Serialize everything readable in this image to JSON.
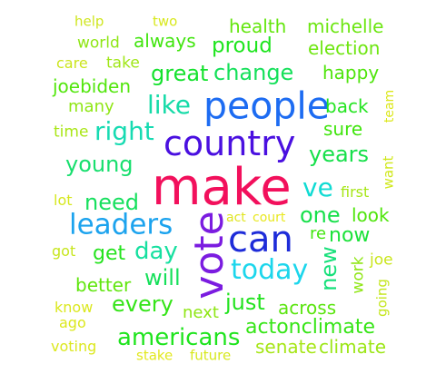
{
  "word_cloud": {
    "words": [
      {
        "text": "help",
        "color": "#cfe61f",
        "vertical": false
      },
      {
        "text": "two",
        "color": "#d8e81d",
        "vertical": false
      },
      {
        "text": "health",
        "color": "#64e60e",
        "vertical": false
      },
      {
        "text": "michelle",
        "color": "#6ce610",
        "vertical": false
      },
      {
        "text": "world",
        "color": "#8ee614",
        "vertical": false
      },
      {
        "text": "always",
        "color": "#41e50e",
        "vertical": false
      },
      {
        "text": "proud",
        "color": "#1fe51f",
        "vertical": false
      },
      {
        "text": "election",
        "color": "#6ee610",
        "vertical": false
      },
      {
        "text": "care",
        "color": "#cbe51d",
        "vertical": false
      },
      {
        "text": "take",
        "color": "#9fe616",
        "vertical": false
      },
      {
        "text": "great",
        "color": "#15e22e",
        "vertical": false
      },
      {
        "text": "change",
        "color": "#15e05a",
        "vertical": false
      },
      {
        "text": "happy",
        "color": "#4fe50c",
        "vertical": false
      },
      {
        "text": "joebiden",
        "color": "#52e60c",
        "vertical": false
      },
      {
        "text": "people",
        "color": "#1d6cf2",
        "vertical": false
      },
      {
        "text": "many",
        "color": "#8fe614",
        "vertical": false
      },
      {
        "text": "like",
        "color": "#16dba8",
        "vertical": false
      },
      {
        "text": "back",
        "color": "#23e41f",
        "vertical": false
      },
      {
        "text": "team",
        "color": "#dce81d",
        "vertical": true
      },
      {
        "text": "time",
        "color": "#a9e616",
        "vertical": false
      },
      {
        "text": "right",
        "color": "#17dbb2",
        "vertical": false
      },
      {
        "text": "sure",
        "color": "#40e50d",
        "vertical": false
      },
      {
        "text": "country",
        "color": "#4a10e0",
        "vertical": false
      },
      {
        "text": "years",
        "color": "#16e04a",
        "vertical": false
      },
      {
        "text": "young",
        "color": "#18df6e",
        "vertical": false
      },
      {
        "text": "want",
        "color": "#d0e81d",
        "vertical": true
      },
      {
        "text": "make",
        "color": "#f2105c",
        "vertical": false
      },
      {
        "text": "first",
        "color": "#a6e616",
        "vertical": false
      },
      {
        "text": "lot",
        "color": "#d6e81d",
        "vertical": false
      },
      {
        "text": "need",
        "color": "#17e05e",
        "vertical": false
      },
      {
        "text": "ve",
        "color": "#10dbd3",
        "vertical": false
      },
      {
        "text": "one",
        "color": "#16e04a",
        "vertical": false
      },
      {
        "text": "leaders",
        "color": "#1ca3ee",
        "vertical": false
      },
      {
        "text": "act",
        "color": "#e0e51f",
        "vertical": false
      },
      {
        "text": "court",
        "color": "#e8e81f",
        "vertical": false
      },
      {
        "text": "look",
        "color": "#4fe50c",
        "vertical": false
      },
      {
        "text": "vote",
        "color": "#7b1ce0",
        "vertical": true
      },
      {
        "text": "can",
        "color": "#1e2cd9",
        "vertical": false
      },
      {
        "text": "re",
        "color": "#41e50e",
        "vertical": false
      },
      {
        "text": "now",
        "color": "#1ce23a",
        "vertical": false
      },
      {
        "text": "got",
        "color": "#c7e61d",
        "vertical": false
      },
      {
        "text": "get",
        "color": "#25e31e",
        "vertical": false
      },
      {
        "text": "day",
        "color": "#17e0a0",
        "vertical": false
      },
      {
        "text": "new",
        "color": "#16e07a",
        "vertical": true
      },
      {
        "text": "today",
        "color": "#1cd6ec",
        "vertical": false
      },
      {
        "text": "work",
        "color": "#8fe614",
        "vertical": true
      },
      {
        "text": "joe",
        "color": "#cae61d",
        "vertical": false
      },
      {
        "text": "will",
        "color": "#16e05a",
        "vertical": false
      },
      {
        "text": "better",
        "color": "#60e60e",
        "vertical": false
      },
      {
        "text": "going",
        "color": "#c4e61d",
        "vertical": true
      },
      {
        "text": "know",
        "color": "#dbe81f",
        "vertical": false
      },
      {
        "text": "every",
        "color": "#35e418",
        "vertical": false
      },
      {
        "text": "just",
        "color": "#22e31f",
        "vertical": false
      },
      {
        "text": "across",
        "color": "#5ae50e",
        "vertical": false
      },
      {
        "text": "ago",
        "color": "#dce81d",
        "vertical": false
      },
      {
        "text": "next",
        "color": "#8ee614",
        "vertical": false
      },
      {
        "text": "actonclimate",
        "color": "#36e516",
        "vertical": false
      },
      {
        "text": "americans",
        "color": "#1fe41e",
        "vertical": false
      },
      {
        "text": "voting",
        "color": "#dce81f",
        "vertical": false
      },
      {
        "text": "senate",
        "color": "#a6e616",
        "vertical": false
      },
      {
        "text": "climate",
        "color": "#9ce616",
        "vertical": false
      },
      {
        "text": "stake",
        "color": "#e2e81f",
        "vertical": false
      },
      {
        "text": "future",
        "color": "#d7e81d",
        "vertical": false
      }
    ]
  }
}
